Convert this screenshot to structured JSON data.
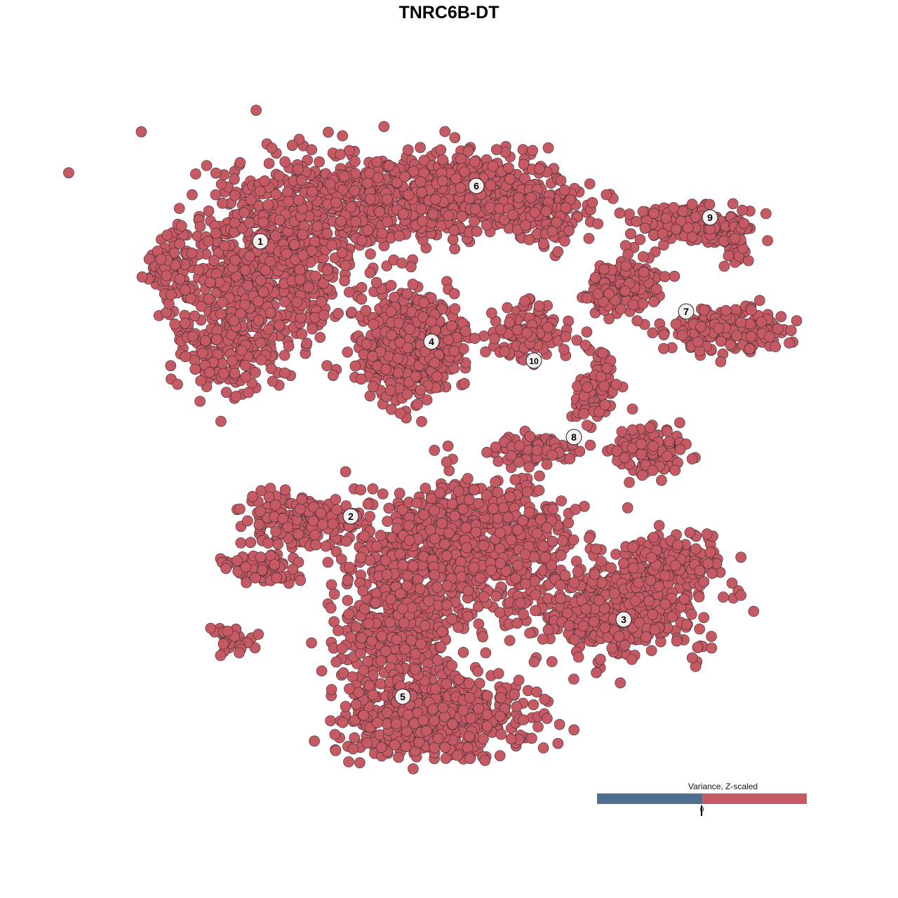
{
  "chart_data": {
    "type": "scatter",
    "title": "TNRC6B-DT",
    "xlabel": "",
    "ylabel": "",
    "axes_visible": false,
    "grid": false,
    "point_color": "#C55A65",
    "point_stroke": "#3A2A2C",
    "clusters": [
      {
        "label": "1",
        "x": -26.9,
        "y": 29.6
      },
      {
        "label": "2",
        "x": -14.0,
        "y": -9.6
      },
      {
        "label": "3",
        "x": 24.9,
        "y": -24.3
      },
      {
        "label": "4",
        "x": -2.5,
        "y": 15.3
      },
      {
        "label": "5",
        "x": -6.6,
        "y": -35.3
      },
      {
        "label": "6",
        "x": 3.9,
        "y": 37.5
      },
      {
        "label": "7",
        "x": 33.8,
        "y": 19.6
      },
      {
        "label": "8",
        "x": 17.8,
        "y": 1.7
      },
      {
        "label": "9",
        "x": 37.2,
        "y": 33.0
      },
      {
        "label": "10",
        "x": 12.1,
        "y": 12.6
      }
    ],
    "legend": {
      "title": "Variance, Z-scaled",
      "position": "bottom-right",
      "low_color": "#4F6E90",
      "high_color": "#C55A65",
      "tick": "0"
    }
  }
}
